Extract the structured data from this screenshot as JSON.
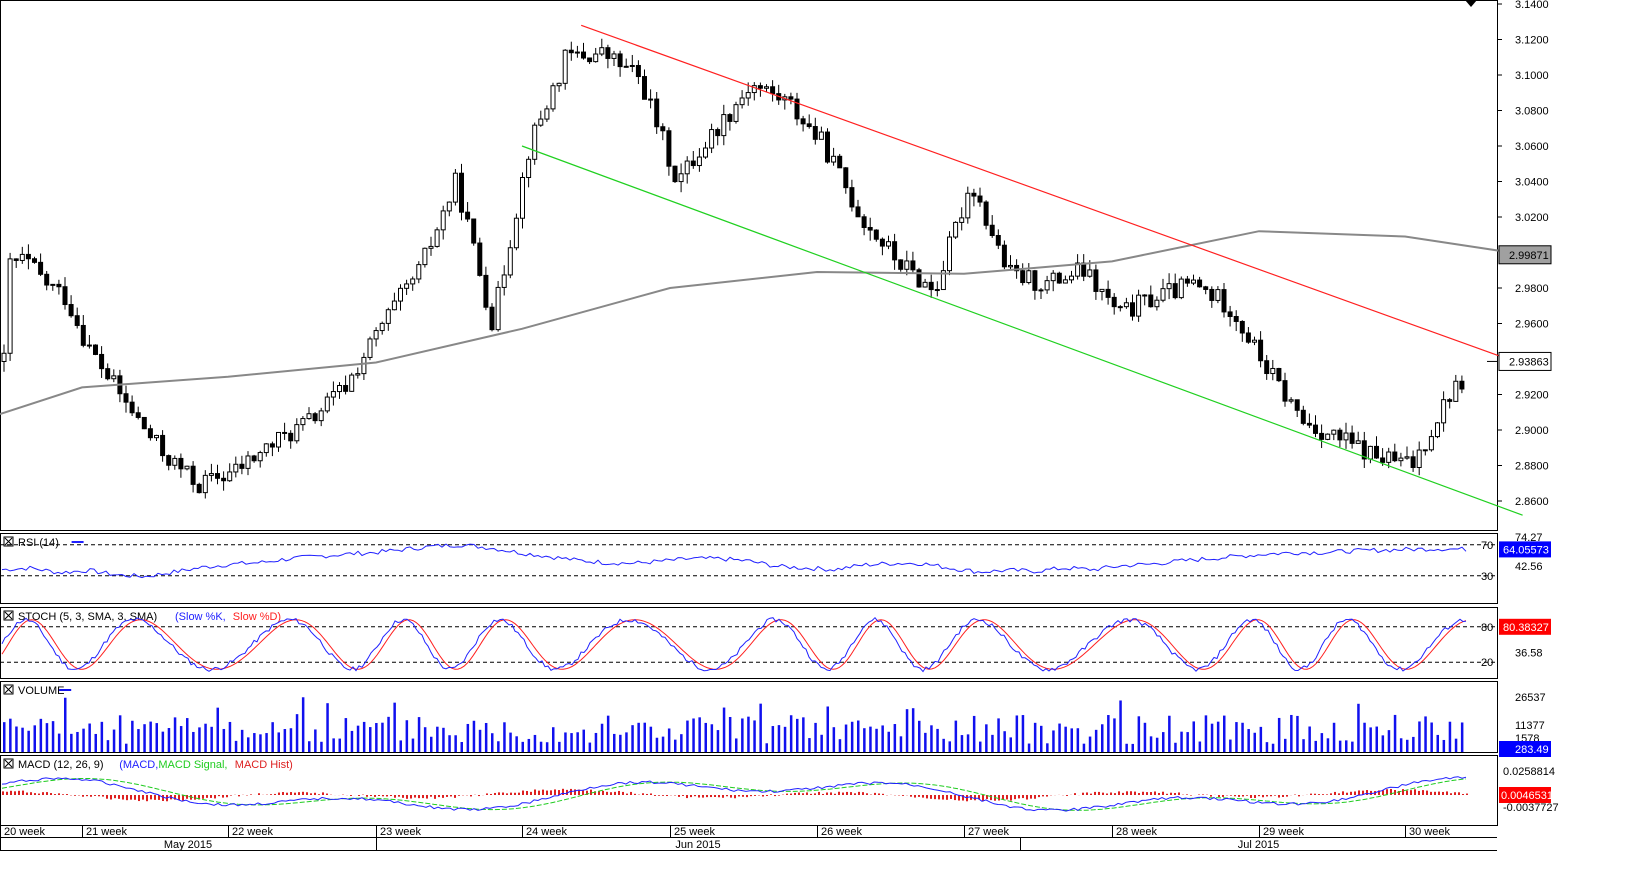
{
  "chart_data": {
    "type": "candlestick",
    "instrument_note": "",
    "price_axis": {
      "ticks": [
        "3.1400",
        "3.1200",
        "3.1000",
        "3.0800",
        "3.0600",
        "3.0400",
        "3.0200",
        "2.9800",
        "2.9600",
        "2.9200",
        "2.9000",
        "2.8800",
        "2.8600"
      ],
      "ylim": [
        2.845,
        3.14
      ],
      "labels": {
        "ma_value": "2.99871",
        "last_price": "2.93863"
      }
    },
    "ohlc_summary": {
      "series": [
        {
          "week": "20 week",
          "values": [
            2.992,
            2.996,
            2.983,
            2.975
          ]
        },
        {
          "week": "21 week",
          "values": [
            2.946,
            2.915,
            2.887,
            2.869
          ]
        },
        {
          "week": "22 week",
          "values": [
            2.877,
            2.892,
            2.905,
            2.925
          ]
        },
        {
          "week": "23 week",
          "values": [
            2.96,
            2.99,
            3.04,
            2.96
          ]
        },
        {
          "week": "24 week",
          "values": [
            3.06,
            3.11,
            3.112,
            3.098
          ]
        },
        {
          "week": "25 week",
          "values": [
            3.04,
            3.068,
            3.095,
            3.085
          ]
        },
        {
          "week": "26 week",
          "values": [
            3.06,
            3.02,
            2.995,
            2.978
          ]
        },
        {
          "week": "27 week",
          "values": [
            3.04,
            2.988,
            2.982,
            2.99
          ]
        },
        {
          "week": "28 week",
          "values": [
            2.965,
            2.975,
            2.982,
            2.97
          ]
        },
        {
          "week": "29 week",
          "values": [
            2.935,
            2.905,
            2.895,
            2.885
          ]
        },
        {
          "week": "30 week",
          "values": [
            2.88,
            2.92,
            2.94,
            2.939
          ]
        }
      ]
    },
    "trendlines": {
      "upper": {
        "color": "#ff2020",
        "from": [
          24.4,
          3.128
        ],
        "to": [
          30.8,
          2.937
        ]
      },
      "lower": {
        "color": "#20d020",
        "from": [
          24.0,
          3.06
        ],
        "to": [
          30.8,
          2.852
        ]
      }
    },
    "moving_average": {
      "color": "#888888",
      "values": [
        [
          20.0,
          2.909
        ],
        [
          21.0,
          2.924
        ],
        [
          22.0,
          2.93
        ],
        [
          23.0,
          2.938
        ],
        [
          24.0,
          2.957
        ],
        [
          25.0,
          2.98
        ],
        [
          26.0,
          2.989
        ],
        [
          27.0,
          2.988
        ],
        [
          28.0,
          2.995
        ],
        [
          29.0,
          3.012
        ],
        [
          30.0,
          3.009
        ],
        [
          30.8,
          2.999
        ]
      ]
    },
    "rsi": {
      "label": "RSI (14)",
      "levels": [
        "70",
        "30"
      ],
      "axis_labels": {
        "value": "64.05573",
        "mid": "42.56",
        "top_cut": "74.27"
      },
      "values": [
        38,
        40,
        34,
        37,
        31,
        29,
        35,
        41,
        45,
        47,
        52,
        55,
        58,
        60,
        64,
        68,
        70,
        66,
        60,
        55,
        50,
        47,
        46,
        49,
        52,
        52,
        49,
        42,
        40,
        38,
        44,
        46,
        46,
        40,
        35,
        37,
        36,
        40,
        38,
        43,
        45,
        49,
        52,
        55,
        58,
        60,
        60,
        62,
        63,
        64,
        65,
        64
      ]
    },
    "stoch": {
      "label": "STOCH (5, 3, SMA, 3, SMA)",
      "legend": [
        "Slow %K",
        "Slow %D"
      ],
      "levels": [
        "80",
        "20"
      ],
      "axis_labels": {
        "value": "80.38327",
        "mid": "36.58"
      }
    },
    "volume": {
      "label": "VOLUME",
      "axis_labels": {
        "top": "26537",
        "mid1": "11377",
        "mid2": "1578",
        "value": "283.49"
      }
    },
    "macd": {
      "label": "MACD (12, 26, 9)",
      "legend": [
        "MACD",
        "MACD Signal",
        "MACD Hist"
      ],
      "axis_labels": {
        "top": "0.0258814",
        "value": "0.0046531",
        "low": "-0.0037727"
      }
    },
    "time_axis": {
      "weeks": [
        "20 week",
        "21 week",
        "22 week",
        "23 week",
        "24 week",
        "25 week",
        "26 week",
        "27 week",
        "28 week",
        "29 week",
        "30 week"
      ],
      "months": [
        "May 2015",
        "Jun 2015",
        "Jul 2015"
      ]
    },
    "colors": {
      "up_candle": "#ffffff",
      "down_candle": "#000000",
      "rsi_line": "#2020ff",
      "stoch_k": "#2020ff",
      "stoch_d": "#ff2020",
      "volume_bar": "#1010ee",
      "macd_line": "#2020ff",
      "macd_signal": "#20cc20",
      "macd_hist": "#dd2020",
      "ma_line": "#888888",
      "value_label_red": "#ff0000",
      "value_label_blue": "#0000ff"
    }
  }
}
